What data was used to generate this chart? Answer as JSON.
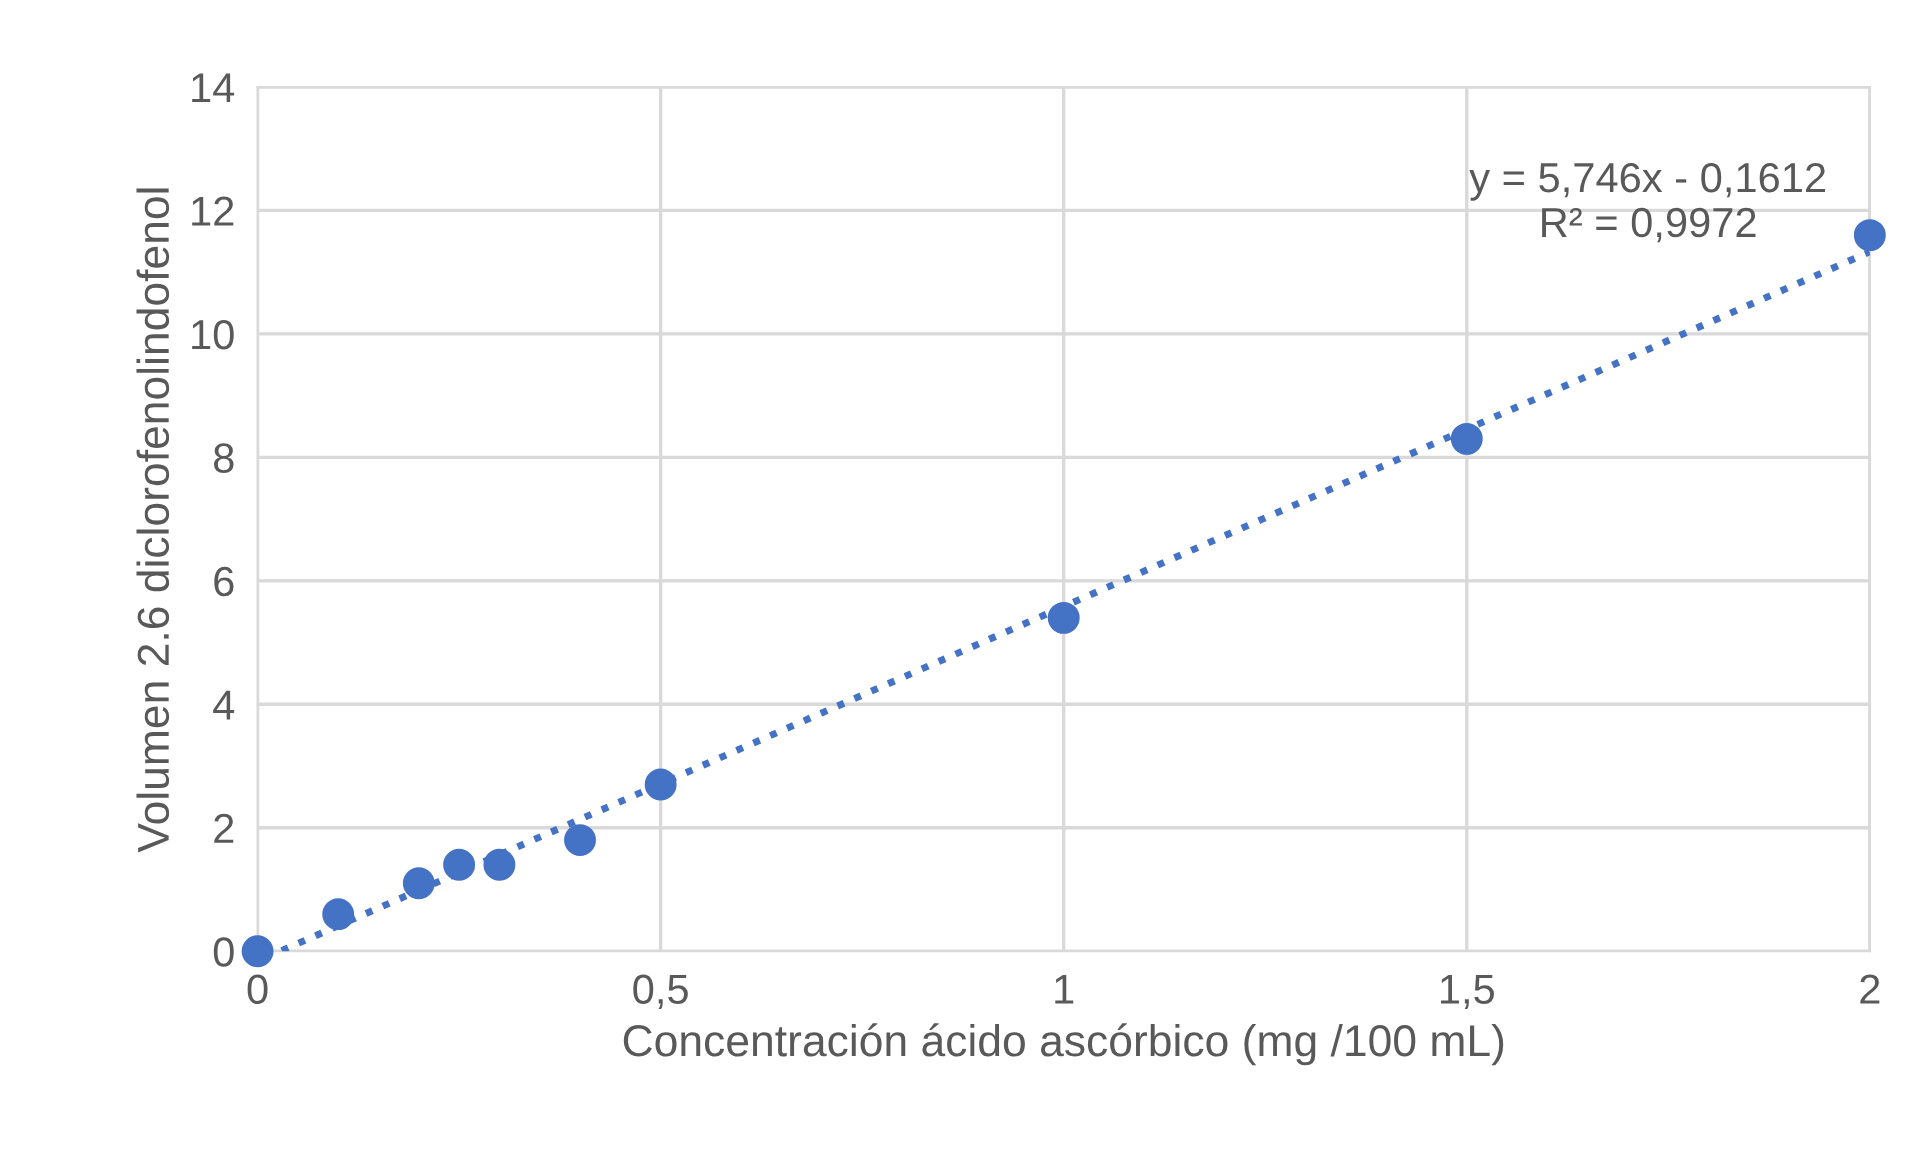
{
  "chart_data": {
    "type": "scatter",
    "xlabel": "Concentración ácido ascórbico (mg /100 mL)",
    "ylabel": "Volumen 2.6 diclorofenolindofenol",
    "x": [
      0,
      0.1,
      0.2,
      0.25,
      0.3,
      0.4,
      0.5,
      1,
      1.5,
      2
    ],
    "series": [
      {
        "color": "#4472c4",
        "marker": "circle",
        "values": [
          0,
          0.6,
          1.1,
          1.4,
          1.4,
          1.8,
          2.7,
          5.4,
          8.3,
          11.6
        ]
      },
      {
        "type": "line",
        "color": "#4472c4",
        "line_style": "dotted",
        "marker": "none",
        "x": [
          0.03,
          2
        ],
        "values": [
          0.01,
          11.33
        ]
      }
    ],
    "annotations": [
      "y = 5,746x - 0,1612\nR² = 0,9972"
    ],
    "xlim": [
      0,
      2
    ],
    "xticks": [
      0,
      {
        "value": 0.5,
        "label": "0,5"
      },
      1,
      {
        "value": 1.5,
        "label": "1,5"
      },
      2
    ],
    "ylim": [
      0,
      14
    ],
    "yticks": [
      0,
      2,
      4,
      6,
      8,
      10,
      12,
      14
    ],
    "grid": true,
    "legend": false
  }
}
